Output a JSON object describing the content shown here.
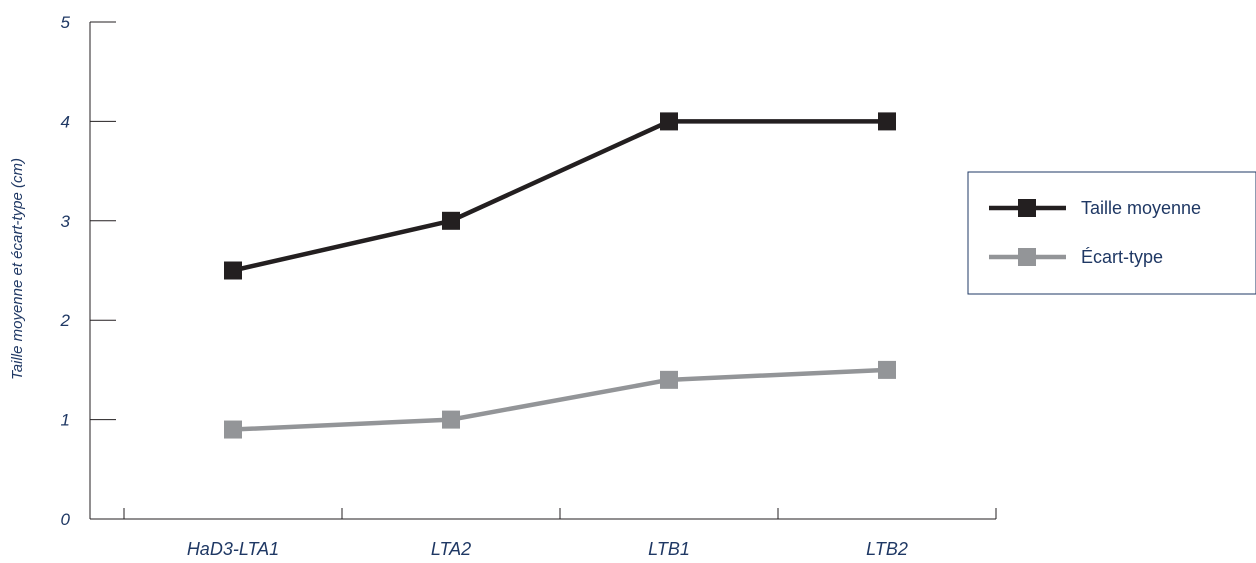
{
  "chart_data": {
    "type": "line",
    "categories": [
      "HaD3-LTA1",
      "LTA2",
      "LTB1",
      "LTB2"
    ],
    "series": [
      {
        "name": "Taille moyenne",
        "values": [
          2.5,
          3.0,
          4.0,
          4.0
        ],
        "color": "#231f20"
      },
      {
        "name": "Écart-type",
        "values": [
          0.9,
          1.0,
          1.4,
          1.5
        ],
        "color": "#939598"
      }
    ],
    "ylabel": "Taille moyenne et écart-type (cm)",
    "xlabel": "",
    "title": "",
    "ylim": [
      0,
      5
    ],
    "yticks": [
      "0",
      "1",
      "2",
      "3",
      "4",
      "5"
    ],
    "grid": false,
    "legend_position": "right",
    "legend_border_color": "#1f3864",
    "text_color": "#1f3864"
  }
}
